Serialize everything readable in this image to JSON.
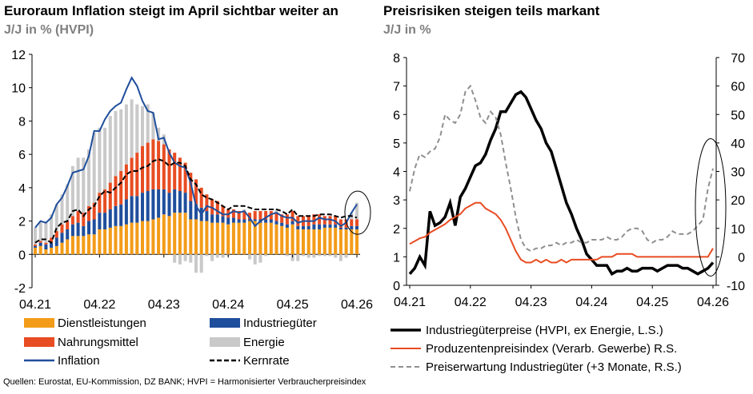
{
  "left": {
    "title": "Euroraum Inflation steigt im April sichtbar weiter an",
    "subtitle": "J/J in % (HVPI)",
    "chart_data": {
      "type": "bar",
      "stacked": true,
      "ylim": [
        -2,
        12
      ],
      "yticks": [
        -2,
        0,
        2,
        4,
        6,
        8,
        10,
        12
      ],
      "xticks": [
        "04.21",
        "04.22",
        "04.23",
        "04.24",
        "04.25",
        "04.26"
      ],
      "months": [
        "04.21",
        "05.21",
        "06.21",
        "07.21",
        "08.21",
        "09.21",
        "10.21",
        "11.21",
        "12.21",
        "01.22",
        "02.22",
        "03.22",
        "04.22",
        "05.22",
        "06.22",
        "07.22",
        "08.22",
        "09.22",
        "10.22",
        "11.22",
        "12.22",
        "01.23",
        "02.23",
        "03.23",
        "04.23",
        "05.23",
        "06.23",
        "07.23",
        "08.23",
        "09.23",
        "10.23",
        "11.23",
        "12.23",
        "01.24",
        "02.24",
        "03.24",
        "04.24",
        "05.24",
        "06.24",
        "07.24",
        "08.24",
        "09.24",
        "10.24",
        "11.24",
        "12.24",
        "01.25",
        "02.25",
        "03.25",
        "04.25",
        "05.25",
        "06.25",
        "07.25",
        "08.25",
        "09.25",
        "10.25",
        "11.25",
        "12.25",
        "01.26",
        "02.26",
        "03.26",
        "04.26"
      ],
      "series": [
        {
          "name": "Dienstleistungen",
          "color": "#f39c19",
          "values": [
            0.4,
            0.5,
            0.3,
            0.4,
            0.5,
            0.7,
            0.9,
            1.1,
            1.1,
            1.1,
            1.2,
            1.2,
            1.5,
            1.5,
            1.6,
            1.7,
            1.7,
            1.8,
            1.9,
            1.9,
            2.0,
            2.0,
            2.1,
            2.2,
            2.4,
            2.3,
            2.5,
            2.5,
            2.5,
            2.1,
            2.1,
            2.0,
            2.0,
            1.9,
            1.9,
            1.9,
            1.8,
            1.9,
            1.9,
            1.9,
            2.0,
            2.0,
            1.9,
            1.9,
            1.9,
            1.8,
            1.7,
            1.6,
            1.8,
            1.5,
            1.5,
            1.5,
            1.5,
            1.5,
            1.6,
            1.6,
            1.6,
            1.5,
            1.5,
            1.5,
            1.5
          ]
        },
        {
          "name": "Industriegüter",
          "color": "#1f4e9c",
          "values": [
            0.1,
            0.2,
            0.3,
            0.3,
            0.5,
            0.6,
            0.6,
            0.7,
            0.8,
            0.6,
            0.8,
            0.9,
            1.0,
            1.0,
            1.1,
            1.2,
            1.3,
            1.5,
            1.6,
            1.6,
            1.7,
            1.8,
            1.8,
            1.7,
            1.5,
            1.4,
            1.4,
            1.3,
            1.2,
            1.1,
            0.9,
            0.8,
            0.6,
            0.5,
            0.5,
            0.4,
            0.4,
            0.3,
            0.2,
            0.2,
            0.1,
            0.1,
            0.2,
            0.2,
            0.2,
            0.2,
            0.2,
            0.2,
            0.2,
            0.2,
            0.2,
            0.2,
            0.3,
            0.3,
            0.2,
            0.2,
            0.2,
            0.1,
            0.1,
            0.2,
            0.2
          ]
        },
        {
          "name": "Nahrungsmittel",
          "color": "#e84c22",
          "values": [
            0.1,
            0.1,
            0.1,
            0.3,
            0.4,
            0.5,
            0.5,
            0.5,
            0.7,
            0.8,
            0.9,
            1.0,
            1.2,
            1.4,
            1.6,
            1.8,
            2.0,
            2.1,
            2.3,
            2.6,
            2.8,
            2.9,
            3.0,
            2.9,
            2.7,
            2.6,
            2.2,
            2.0,
            1.8,
            1.7,
            1.5,
            1.2,
            1.0,
            0.9,
            0.8,
            0.6,
            0.5,
            0.5,
            0.5,
            0.5,
            0.4,
            0.5,
            0.5,
            0.5,
            0.5,
            0.5,
            0.5,
            0.6,
            0.6,
            0.6,
            0.6,
            0.6,
            0.6,
            0.6,
            0.5,
            0.5,
            0.5,
            0.5,
            0.5,
            0.4,
            0.4
          ]
        },
        {
          "name": "Energie",
          "color": "#c9c9c9",
          "values": [
            1.0,
            1.2,
            1.2,
            1.4,
            1.6,
            1.8,
            2.2,
            3.0,
            3.2,
            3.3,
            3.4,
            4.2,
            3.9,
            3.7,
            4.0,
            3.9,
            3.7,
            3.6,
            3.5,
            2.9,
            2.4,
            2.3,
            1.6,
            0.8,
            0.6,
            0.0,
            -0.5,
            -0.6,
            -0.4,
            -0.5,
            -1.1,
            -1.1,
            -0.1,
            -0.4,
            -0.2,
            -0.2,
            -0.1,
            0.0,
            0.0,
            0.1,
            -0.3,
            -0.6,
            -0.5,
            -0.1,
            0.0,
            0.2,
            0.0,
            -0.1,
            -0.4,
            -0.4,
            -0.1,
            -0.2,
            -0.2,
            -0.1,
            -0.1,
            -0.1,
            -0.2,
            -0.4,
            -0.2,
            0.4,
            1.0
          ]
        }
      ],
      "lines": [
        {
          "name": "Inflation",
          "color": "#1f4e9c",
          "dash": false,
          "values": [
            1.6,
            2.0,
            1.9,
            2.2,
            3.0,
            3.4,
            4.1,
            4.9,
            5.0,
            5.1,
            5.9,
            7.4,
            7.4,
            8.1,
            8.6,
            8.9,
            9.1,
            9.9,
            10.6,
            10.1,
            9.2,
            8.6,
            8.5,
            6.9,
            7.0,
            6.1,
            5.5,
            5.3,
            5.2,
            4.3,
            2.9,
            2.4,
            2.9,
            2.8,
            2.6,
            2.4,
            2.4,
            2.6,
            2.5,
            2.6,
            2.2,
            1.7,
            2.0,
            2.2,
            2.4,
            2.5,
            2.3,
            2.2,
            2.2,
            1.9,
            2.0,
            2.0,
            2.0,
            2.2,
            2.1,
            2.1,
            2.0,
            1.7,
            1.9,
            2.5,
            3.0
          ]
        },
        {
          "name": "Kernrate",
          "color": "#000000",
          "dash": true,
          "values": [
            0.7,
            0.9,
            0.9,
            0.7,
            1.6,
            1.9,
            2.0,
            2.6,
            2.7,
            2.3,
            2.7,
            2.9,
            3.5,
            3.8,
            3.7,
            4.0,
            4.3,
            4.8,
            5.0,
            5.0,
            5.2,
            5.3,
            5.6,
            5.7,
            5.6,
            5.3,
            5.5,
            5.5,
            5.3,
            4.5,
            4.2,
            3.6,
            3.4,
            3.3,
            3.1,
            2.9,
            2.7,
            2.9,
            2.9,
            2.9,
            2.8,
            2.7,
            2.7,
            2.7,
            2.7,
            2.7,
            2.6,
            2.4,
            2.7,
            2.3,
            2.3,
            2.3,
            2.3,
            2.4,
            2.4,
            2.4,
            2.3,
            2.2,
            2.3,
            2.3,
            2.2
          ]
        }
      ]
    }
  },
  "right": {
    "title": "Preisrisiken steigen teils markant",
    "subtitle": "J/J in %",
    "chart_data": {
      "type": "line",
      "ylim_left": [
        0,
        8
      ],
      "yticks_left": [
        0,
        1,
        2,
        3,
        4,
        5,
        6,
        7,
        8
      ],
      "ylim_right": [
        -10,
        70
      ],
      "yticks_right": [
        -10,
        0,
        10,
        20,
        30,
        40,
        50,
        60,
        70
      ],
      "xticks": [
        "04.21",
        "04.22",
        "04.23",
        "04.24",
        "04.25",
        "04.26"
      ],
      "series": [
        {
          "name": "Industriegüterpreise (HVPI, ex Energie, L.S.)",
          "axis": "left",
          "color": "#000000",
          "dash": false,
          "values": [
            0.4,
            0.6,
            1.0,
            0.7,
            2.6,
            2.1,
            2.2,
            2.4,
            2.9,
            2.1,
            3.1,
            3.4,
            3.8,
            4.2,
            4.3,
            4.6,
            5.1,
            5.5,
            6.1,
            6.1,
            6.4,
            6.7,
            6.8,
            6.6,
            6.2,
            5.8,
            5.5,
            5.0,
            4.7,
            4.1,
            3.5,
            2.9,
            2.5,
            2.0,
            1.6,
            1.1,
            0.9,
            0.7,
            0.7,
            0.7,
            0.4,
            0.5,
            0.5,
            0.6,
            0.5,
            0.5,
            0.6,
            0.6,
            0.6,
            0.5,
            0.6,
            0.7,
            0.7,
            0.7,
            0.6,
            0.6,
            0.5,
            0.4,
            0.5,
            0.6,
            0.8
          ]
        },
        {
          "name": "Produzentenpreisindex (Verarb. Gewerbe) R.S.",
          "axis": "right",
          "color": "#e84c22",
          "dash": false,
          "values": [
            4.5,
            5.5,
            6.5,
            7.0,
            8.5,
            9.5,
            10.5,
            11.5,
            13,
            14,
            15,
            17,
            18,
            19,
            19,
            17,
            16,
            15,
            13,
            10,
            6,
            2,
            -1,
            -2,
            -2,
            -1,
            -2,
            -1,
            -2,
            -2,
            -1,
            -2,
            -1,
            -1,
            -1,
            -1,
            -1,
            -1,
            0,
            0,
            0,
            1,
            1,
            1,
            1,
            0,
            0,
            0,
            0,
            0,
            0,
            0,
            0,
            0,
            0,
            0,
            0,
            0,
            0,
            0,
            3
          ]
        },
        {
          "name": "Preiserwartung Industriegüter (+3 Monate, R.S.)",
          "axis": "right",
          "color": "#8f8f8f",
          "dash": true,
          "values": [
            23,
            31,
            36,
            35,
            37,
            38,
            42,
            50,
            48,
            47,
            50,
            58,
            60,
            55,
            49,
            47,
            51,
            49,
            43,
            33,
            24,
            14,
            6,
            3,
            2,
            3,
            3,
            4,
            4,
            5,
            4,
            5,
            5,
            6,
            5,
            5,
            6,
            6,
            6,
            7,
            6,
            6,
            7,
            9,
            10,
            10,
            9,
            6,
            5,
            6,
            6,
            7,
            9,
            8,
            8,
            8,
            9,
            11,
            13,
            24,
            31
          ]
        }
      ]
    }
  },
  "legend_left": {
    "services": "Dienstleistungen",
    "industrial": "Industriegüter",
    "food": "Nahrungsmittel",
    "energy": "Energie",
    "inflation": "Inflation",
    "core": "Kernrate"
  },
  "legend_right": {
    "ind": "Industriegüterpreise (HVPI, ex Energie, L.S.)",
    "ppi": "Produzentenpreisindex (Verarb. Gewerbe) R.S.",
    "exp": "Preiserwartung Industriegüter (+3 Monate, R.S.)"
  },
  "source": "Quellen: Eurostat, EU-Kommission, DZ BANK; HVPI = Harmonisierter Verbraucherpreisindex"
}
